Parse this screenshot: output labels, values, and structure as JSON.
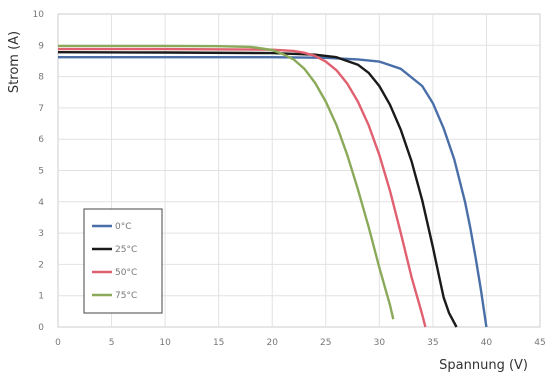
{
  "chart_data": {
    "type": "line",
    "xlabel": "Spannung (V)",
    "ylabel": "Strom (A)",
    "xlim": [
      0,
      45
    ],
    "ylim": [
      0,
      10
    ],
    "xticks": [
      "0",
      "5",
      "10",
      "15",
      "20",
      "25",
      "30",
      "35",
      "40",
      "45"
    ],
    "yticks": [
      "0",
      "1",
      "2",
      "3",
      "4",
      "5",
      "6",
      "7",
      "8",
      "9",
      "10"
    ],
    "grid": true,
    "legend_position": "bottom-left",
    "series": [
      {
        "name": "0°C",
        "color": "#4a6fa8",
        "x": [
          0,
          10,
          20,
          25,
          28,
          30,
          32,
          34,
          35,
          36,
          37,
          38,
          38.5,
          39,
          39.5,
          40
        ],
        "y": [
          8.62,
          8.62,
          8.62,
          8.6,
          8.55,
          8.48,
          8.25,
          7.7,
          7.15,
          6.35,
          5.35,
          4.0,
          3.15,
          2.2,
          1.15,
          0
        ]
      },
      {
        "name": "25°C",
        "color": "#1a1a1a",
        "x": [
          0,
          10,
          20,
          24,
          26,
          28,
          29,
          30,
          31,
          32,
          33,
          34,
          35,
          35.5,
          36,
          36.5,
          37.2
        ],
        "y": [
          8.78,
          8.77,
          8.75,
          8.7,
          8.62,
          8.38,
          8.12,
          7.7,
          7.1,
          6.3,
          5.3,
          4.05,
          2.55,
          1.75,
          0.95,
          0.45,
          0
        ]
      },
      {
        "name": "50°C",
        "color": "#e06070",
        "x": [
          0,
          10,
          20,
          22,
          23,
          24,
          25,
          26,
          27,
          28,
          29,
          30,
          31,
          32,
          33,
          34,
          34.3
        ],
        "y": [
          8.88,
          8.88,
          8.86,
          8.82,
          8.76,
          8.66,
          8.48,
          8.2,
          7.78,
          7.2,
          6.45,
          5.5,
          4.35,
          3.0,
          1.6,
          0.4,
          0
        ]
      },
      {
        "name": "75°C",
        "color": "#8aaa5a",
        "x": [
          0,
          10,
          15,
          18,
          20,
          21,
          22,
          23,
          24,
          25,
          26,
          27,
          28,
          29,
          30,
          31,
          31.3
        ],
        "y": [
          8.98,
          8.98,
          8.97,
          8.95,
          8.85,
          8.72,
          8.55,
          8.25,
          7.8,
          7.2,
          6.45,
          5.5,
          4.4,
          3.2,
          1.9,
          0.7,
          0.25
        ]
      }
    ]
  }
}
